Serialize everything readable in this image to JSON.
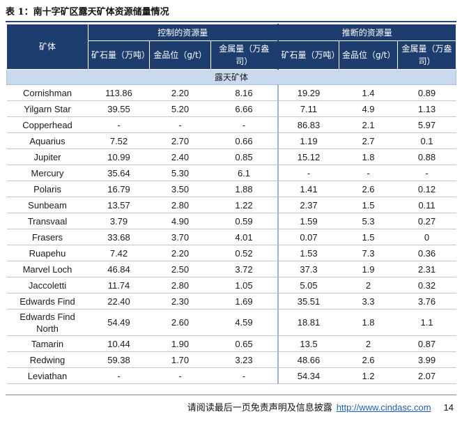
{
  "caption": "表 1：南十字矿区露天矿体资源储量情况",
  "header": {
    "ore_body": "矿体",
    "controlled": "控制的资源量",
    "inferred": "推断的资源量",
    "ore_tonnage": "矿石量（万吨）",
    "grade": "金品位（g/t）",
    "metal": "金属量（万盎司）"
  },
  "section": "露天矿体",
  "rows": [
    [
      "Cornishman",
      "113.86",
      "2.20",
      "8.16",
      "19.29",
      "1.4",
      "0.89"
    ],
    [
      "Yilgarn Star",
      "39.55",
      "5.20",
      "6.66",
      "7.11",
      "4.9",
      "1.13"
    ],
    [
      "Copperhead",
      "-",
      "-",
      "-",
      "86.83",
      "2.1",
      "5.97"
    ],
    [
      "Aquarius",
      "7.52",
      "2.70",
      "0.66",
      "1.19",
      "2.7",
      "0.1"
    ],
    [
      "Jupiter",
      "10.99",
      "2.40",
      "0.85",
      "15.12",
      "1.8",
      "0.88"
    ],
    [
      "Mercury",
      "35.64",
      "5.30",
      "6.1",
      "-",
      "-",
      "-"
    ],
    [
      "Polaris",
      "16.79",
      "3.50",
      "1.88",
      "1.41",
      "2.6",
      "0.12"
    ],
    [
      "Sunbeam",
      "13.57",
      "2.80",
      "1.22",
      "2.37",
      "1.5",
      "0.11"
    ],
    [
      "Transvaal",
      "3.79",
      "4.90",
      "0.59",
      "1.59",
      "5.3",
      "0.27"
    ],
    [
      "Frasers",
      "33.68",
      "3.70",
      "4.01",
      "0.07",
      "1.5",
      "0"
    ],
    [
      "Ruapehu",
      "7.42",
      "2.20",
      "0.52",
      "1.53",
      "7.3",
      "0.36"
    ],
    [
      "Marvel Loch",
      "46.84",
      "2.50",
      "3.72",
      "37.3",
      "1.9",
      "2.31"
    ],
    [
      "Jaccoletti",
      "11.74",
      "2.80",
      "1.05",
      "5.05",
      "2",
      "0.32"
    ],
    [
      "Edwards Find",
      "22.40",
      "2.30",
      "1.69",
      "35.51",
      "3.3",
      "3.76"
    ],
    [
      "Edwards Find North",
      "54.49",
      "2.60",
      "4.59",
      "18.81",
      "1.8",
      "1.1"
    ],
    [
      "Tamarin",
      "10.44",
      "1.90",
      "0.65",
      "13.5",
      "2",
      "0.87"
    ],
    [
      "Redwing",
      "59.38",
      "1.70",
      "3.23",
      "48.66",
      "2.6",
      "3.99"
    ],
    [
      "Leviathan",
      "-",
      "-",
      "-",
      "54.34",
      "1.2",
      "2.07"
    ]
  ],
  "footer": {
    "disclaimer": "请阅读最后一页免责声明及信息披露",
    "url": "http://www.cindasc.com",
    "page": "14"
  }
}
